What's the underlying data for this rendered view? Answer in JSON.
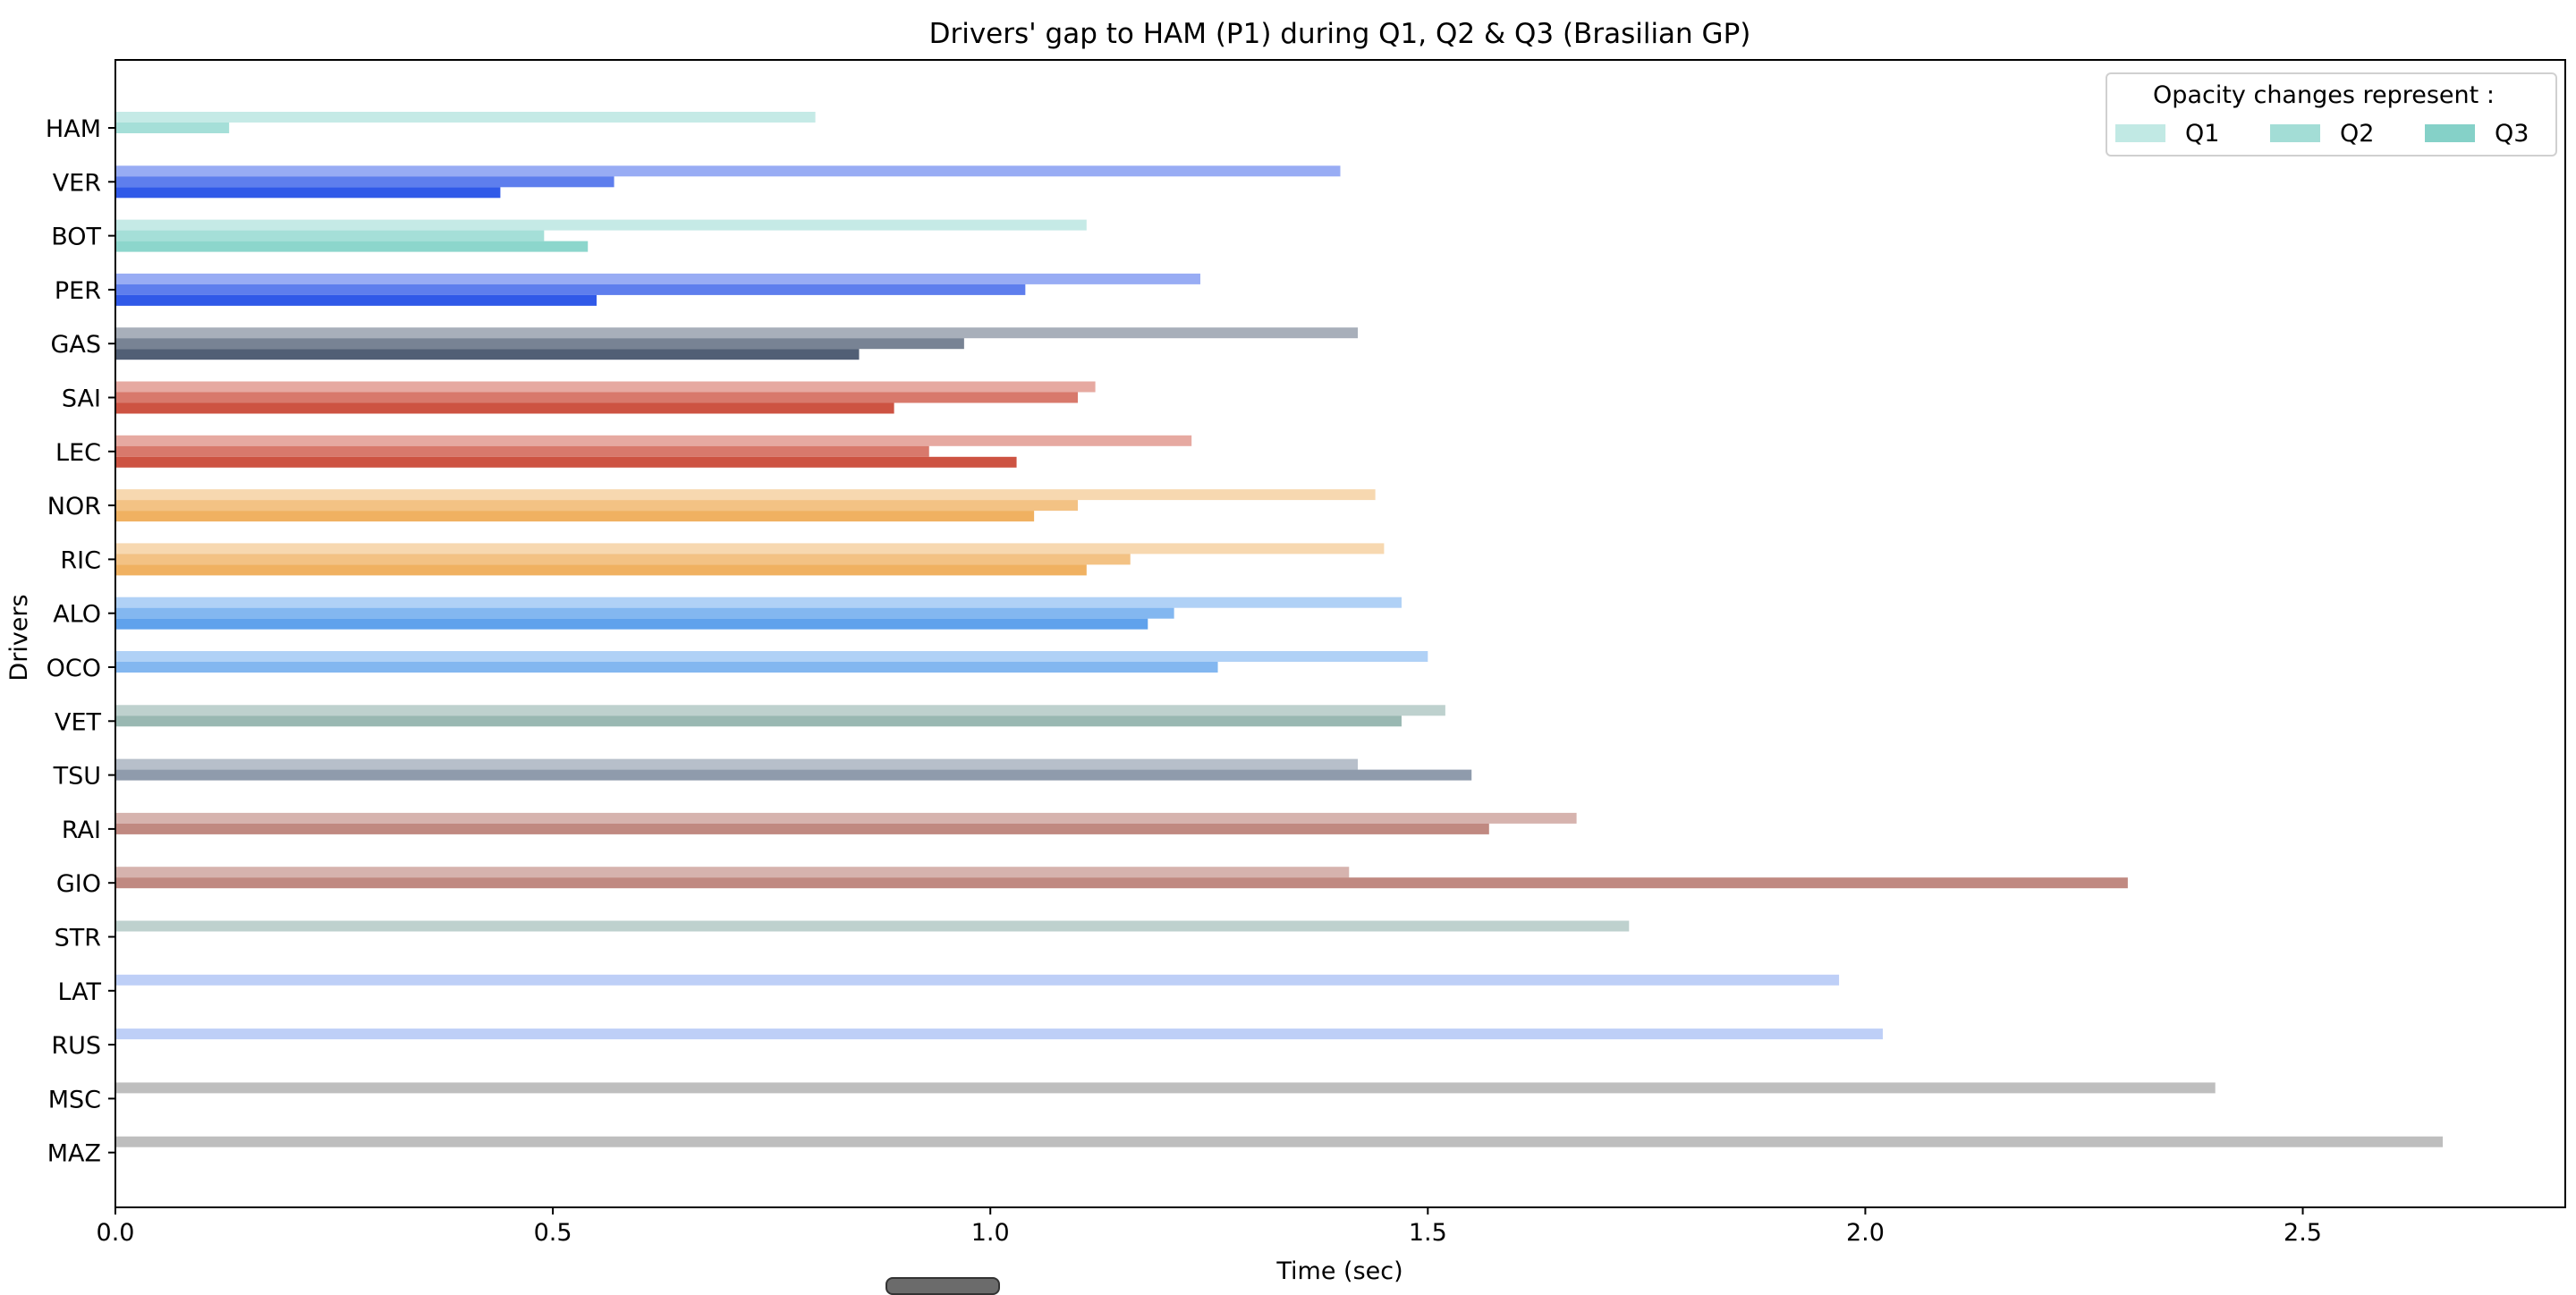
{
  "chart_data": {
    "type": "bar",
    "orientation": "horizontal",
    "title": "Drivers' gap to HAM (P1) during Q1, Q2 & Q3 (Brasilian GP)",
    "xlabel": "Time (sec)",
    "ylabel": "Drivers",
    "xlim": [
      0,
      2.8
    ],
    "xticks": [
      0.0,
      0.5,
      1.0,
      1.5,
      2.0,
      2.5
    ],
    "xtick_labels": [
      "0.0",
      "0.5",
      "1.0",
      "1.5",
      "2.0",
      "2.5"
    ],
    "grid": false,
    "categories": [
      "HAM",
      "VER",
      "BOT",
      "PER",
      "GAS",
      "SAI",
      "LEC",
      "NOR",
      "RIC",
      "ALO",
      "OCO",
      "VET",
      "TSU",
      "RAI",
      "GIO",
      "STR",
      "LAT",
      "RUS",
      "MSC",
      "MAZ"
    ],
    "team_colors": [
      "#7fd1c7",
      "#1a47e6",
      "#7fd1c7",
      "#1a47e6",
      "#3e4e66",
      "#c8402e",
      "#c8402e",
      "#eea850",
      "#eea850",
      "#4f98ea",
      "#4f98ea",
      "#6e9a92",
      "#5f7089",
      "#a5574c",
      "#a5574c",
      "#6e9a92",
      "#6f95ee",
      "#6f95ee",
      "#6e6e6e",
      "#6e6e6e"
    ],
    "series": [
      {
        "name": "Q1",
        "opacity": 0.45,
        "values": [
          0.8,
          1.4,
          1.11,
          1.24,
          1.42,
          1.12,
          1.23,
          1.44,
          1.45,
          1.47,
          1.5,
          1.52,
          1.42,
          1.67,
          1.41,
          1.73,
          1.97,
          2.02,
          2.4,
          2.66
        ]
      },
      {
        "name": "Q2",
        "opacity": 0.7,
        "values": [
          0.13,
          0.57,
          0.49,
          1.04,
          0.97,
          1.1,
          0.93,
          1.1,
          1.16,
          1.21,
          1.26,
          1.47,
          1.55,
          1.57,
          2.3,
          null,
          null,
          null,
          null,
          null
        ]
      },
      {
        "name": "Q3",
        "opacity": 0.9,
        "values": [
          0.0,
          0.44,
          0.54,
          0.55,
          0.85,
          0.89,
          1.03,
          1.05,
          1.11,
          1.18,
          null,
          null,
          null,
          null,
          null,
          null,
          null,
          null,
          null,
          null
        ]
      }
    ],
    "legend": {
      "title": "Opacity changes represent :",
      "placement": "top-right",
      "entries": [
        {
          "label": "Q1",
          "color": "#c1e9e4"
        },
        {
          "label": "Q2",
          "color": "#a3ddd6"
        },
        {
          "label": "Q3",
          "color": "#85d1c8"
        }
      ]
    }
  }
}
